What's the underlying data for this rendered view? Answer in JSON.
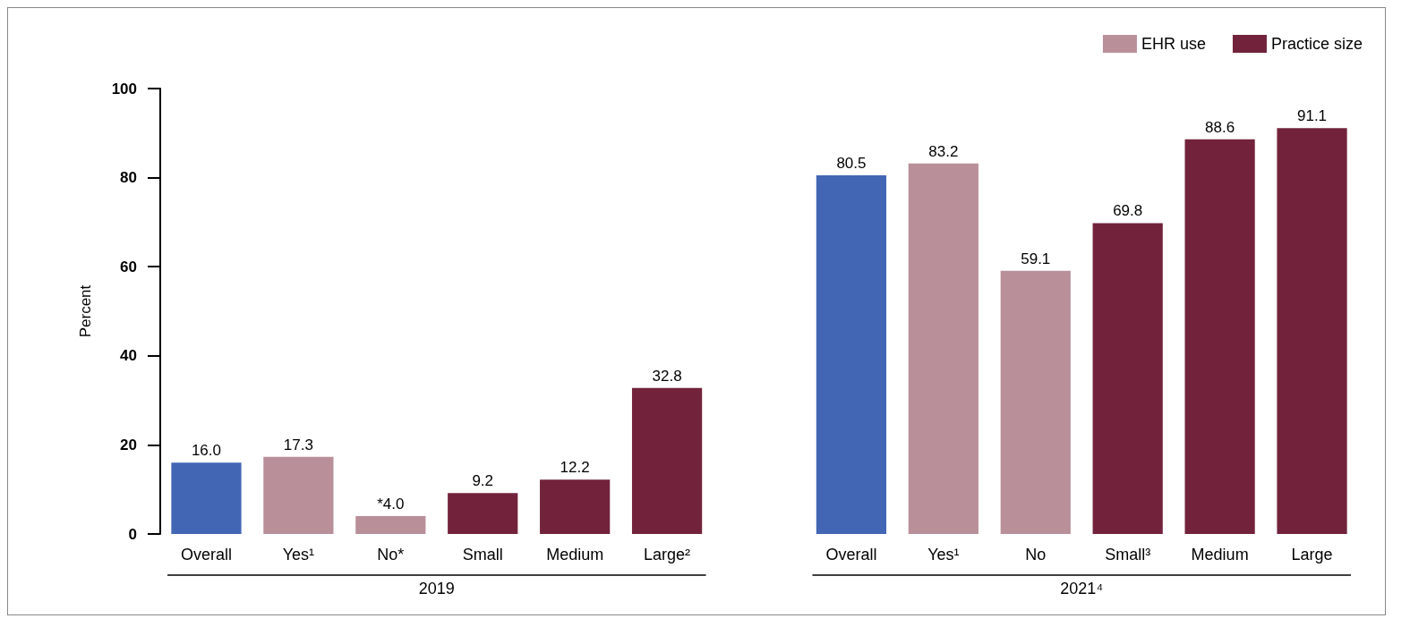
{
  "chart_data": {
    "type": "bar",
    "ylabel": "Percent",
    "categories": [
      "Overall",
      "Yes¹",
      "No*",
      "Small",
      "Medium",
      "Large²",
      null,
      "Overall",
      "Yes¹",
      "No",
      "Small³",
      "Medium",
      "Large"
    ],
    "series": [
      {
        "color": "#4266b4",
        "values": [
          16.0,
          null,
          null,
          null,
          null,
          null,
          null,
          80.5,
          null,
          null,
          null,
          null,
          null
        ],
        "value_labels": [
          "16.0",
          null,
          null,
          null,
          null,
          null,
          null,
          "80.5",
          null,
          null,
          null,
          null,
          null
        ]
      },
      {
        "name": "EHR use",
        "color": "#b9909a",
        "values": [
          null,
          17.3,
          4.0,
          null,
          null,
          null,
          null,
          null,
          83.2,
          59.1,
          null,
          null,
          null
        ],
        "value_labels": [
          null,
          "17.3",
          "*4.0",
          null,
          null,
          null,
          null,
          null,
          "83.2",
          "59.1",
          null,
          null,
          null
        ]
      },
      {
        "name": "Practice size",
        "color": "#72233b",
        "values": [
          null,
          null,
          null,
          9.2,
          12.2,
          32.8,
          null,
          null,
          null,
          null,
          69.8,
          88.6,
          91.1
        ],
        "value_labels": [
          null,
          null,
          null,
          "9.2",
          "12.2",
          "32.8",
          null,
          null,
          null,
          null,
          "69.8",
          "88.6",
          "91.1"
        ]
      }
    ],
    "annotations": [
      "2019",
      "2021⁴"
    ],
    "ylim": [
      0,
      100
    ],
    "yticks": [
      0,
      20,
      40,
      60,
      80,
      100
    ],
    "grid": false,
    "legend": "top right"
  }
}
